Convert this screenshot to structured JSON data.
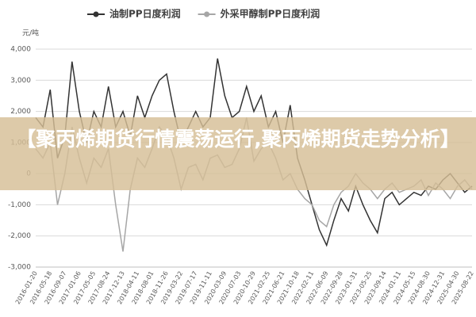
{
  "chart_data": {
    "type": "line",
    "legend_position": "top",
    "y_label": "元/吨",
    "categories": [
      "2016-01-20",
      null,
      "2016-05-18",
      null,
      "2016-09-07",
      null,
      "2017-01-06",
      null,
      "2017-05-05",
      null,
      "2017-08-24",
      null,
      "2017-12-13",
      null,
      "2018-04-11",
      null,
      "2018-08-01",
      null,
      "2018-11-26",
      null,
      "2019-03-22",
      null,
      "2019-07-17",
      null,
      "2019-11-11",
      null,
      "2020-03-09",
      null,
      "2020-07-03",
      null,
      "2020-10-29",
      null,
      "2021-02-25",
      null,
      "2021-06-21",
      null,
      "2021-10-18",
      null,
      "2022-02-11",
      null,
      "2022-06-09",
      null,
      "2022-09-28",
      null,
      "2023-01-31",
      null,
      "2023-05-25",
      null,
      "2023-09-14",
      null,
      "2024-01-11",
      null,
      "2024-05-15",
      null,
      "2024-08-30",
      null,
      "2024-12-31",
      null,
      "2025-04-30",
      null,
      "2025-08-22"
    ],
    "series": [
      {
        "name": "油制PP日度利润",
        "color": "#333333",
        "values": [
          1800,
          1500,
          2700,
          500,
          1200,
          3600,
          2000,
          1000,
          2000,
          1500,
          2800,
          1500,
          2000,
          1200,
          2500,
          1800,
          2500,
          3000,
          3200,
          2000,
          1000,
          1500,
          2000,
          1500,
          1800,
          3700,
          2500,
          1800,
          2000,
          2800,
          2000,
          2500,
          1500,
          2000,
          1000,
          2200,
          500,
          -200,
          -1000,
          -1800,
          -2300,
          -1500,
          -800,
          -1200,
          -400,
          -1000,
          -1500,
          -1900,
          -800,
          -600,
          -1000,
          -800,
          -600,
          -700,
          -400,
          -500,
          -200,
          0,
          -300,
          -600,
          -400
        ]
      },
      {
        "name": "外采甲醇制PP日度利润",
        "color": "#a6a6a6",
        "values": [
          800,
          500,
          1000,
          -1000,
          0,
          1500,
          500,
          -300,
          500,
          200,
          800,
          -1000,
          -2500,
          -500,
          500,
          200,
          800,
          1500,
          1200,
          500,
          -500,
          200,
          300,
          -200,
          500,
          600,
          200,
          300,
          800,
          1800,
          400,
          800,
          1000,
          500,
          -200,
          0,
          -500,
          -800,
          -1000,
          -1500,
          -1700,
          -1000,
          -600,
          -400,
          0,
          -300,
          -500,
          -800,
          -500,
          -300,
          -600,
          -500,
          -400,
          -200,
          -700,
          -300,
          -500,
          -800,
          -400,
          -200,
          -500
        ]
      }
    ],
    "ylim": [
      -3000,
      4000
    ],
    "yticks": [
      -3000,
      -2000,
      -1000,
      0,
      1000,
      2000,
      3000,
      4000
    ],
    "ytick_labels": [
      "-3,000",
      "-2,000",
      "-1,000",
      "0",
      "1,000",
      "2,000",
      "3,000",
      "4,000"
    ],
    "grid": true
  },
  "banner": "【聚丙烯期货行情震荡运行,聚丙烯期货走势分析】"
}
